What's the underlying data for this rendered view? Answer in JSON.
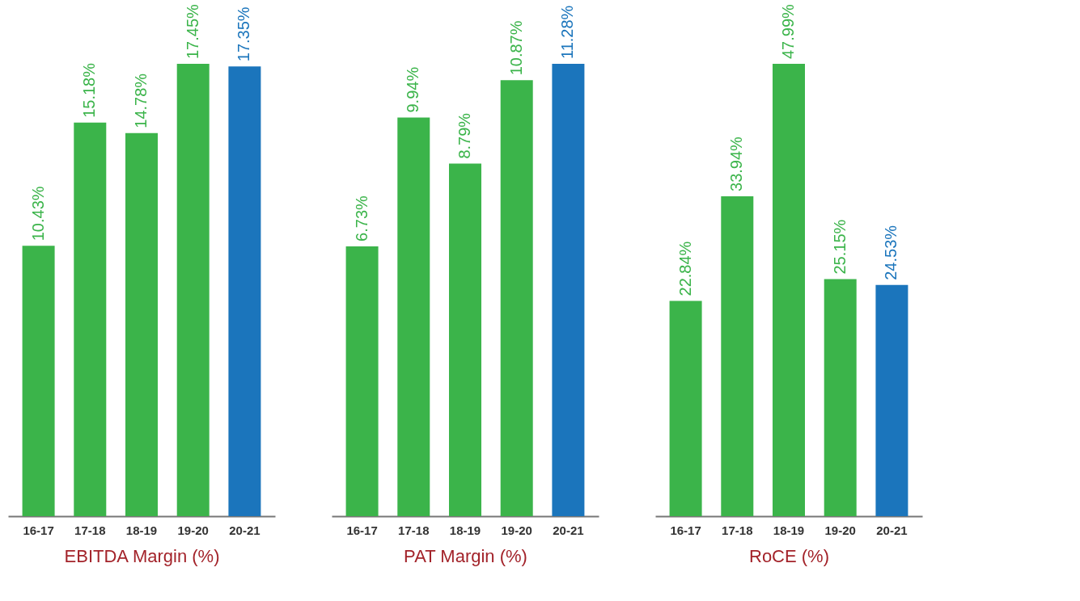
{
  "chart_data": [
    {
      "type": "bar",
      "xlabel": "EBITDA Margin (%)",
      "categories": [
        "16-17",
        "17-18",
        "18-19",
        "19-20",
        "20-21"
      ],
      "values": [
        10.43,
        15.18,
        14.78,
        17.45,
        17.35
      ],
      "value_labels": [
        "10.43%",
        "15.18%",
        "14.78%",
        "17.45%",
        "17.35%"
      ],
      "colors": [
        "#3bb44a",
        "#3bb44a",
        "#3bb44a",
        "#3bb44a",
        "#1b75bc"
      ],
      "tick_labels": "x",
      "grid": false
    },
    {
      "type": "bar",
      "xlabel": "PAT Margin (%)",
      "categories": [
        "16-17",
        "17-18",
        "18-19",
        "19-20",
        "20-21"
      ],
      "values": [
        6.73,
        9.94,
        8.79,
        10.87,
        11.28
      ],
      "value_labels": [
        "6.73%",
        "9.94%",
        "8.79%",
        "10.87%",
        "11.28%"
      ],
      "colors": [
        "#3bb44a",
        "#3bb44a",
        "#3bb44a",
        "#3bb44a",
        "#1b75bc"
      ],
      "tick_labels": "x",
      "grid": false
    },
    {
      "type": "bar",
      "xlabel": "RoCE (%)",
      "categories": [
        "16-17",
        "17-18",
        "18-19",
        "19-20",
        "20-21"
      ],
      "values": [
        22.84,
        33.94,
        47.99,
        25.15,
        24.53
      ],
      "value_labels": [
        "22.84%",
        "33.94%",
        "47.99%",
        "25.15%",
        "24.53%"
      ],
      "colors": [
        "#3bb44a",
        "#3bb44a",
        "#3bb44a",
        "#3bb44a",
        "#1b75bc"
      ],
      "tick_labels": "x",
      "grid": false
    }
  ]
}
